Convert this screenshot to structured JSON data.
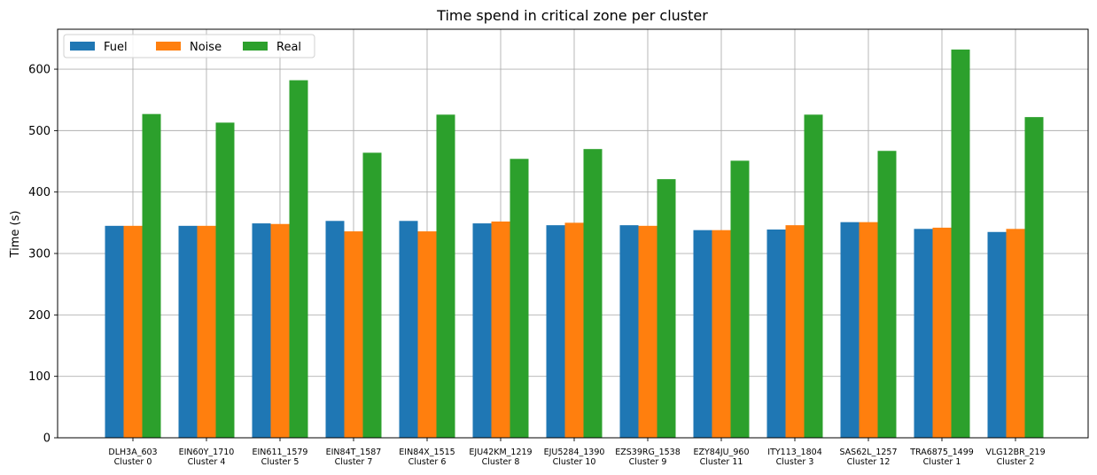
{
  "chart_data": {
    "type": "bar",
    "title": "Time spend in critical zone per cluster",
    "xlabel": "",
    "ylabel": "Time (s)",
    "ylim": [
      0,
      665
    ],
    "yticks": [
      0,
      100,
      200,
      300,
      400,
      500,
      600
    ],
    "grid": true,
    "legend_position": "top-left",
    "categories": [
      [
        "DLH3A_603",
        "Cluster 0"
      ],
      [
        "EIN60Y_1710",
        "Cluster 4"
      ],
      [
        "EIN611_1579",
        "Cluster 5"
      ],
      [
        "EIN84T_1587",
        "Cluster 7"
      ],
      [
        "EIN84X_1515",
        "Cluster 6"
      ],
      [
        "EJU42KM_1219",
        "Cluster 8"
      ],
      [
        "EJU5284_1390",
        "Cluster 10"
      ],
      [
        "EZS39RG_1538",
        "Cluster 9"
      ],
      [
        "EZY84JU_960",
        "Cluster 11"
      ],
      [
        "ITY113_1804",
        "Cluster 3"
      ],
      [
        "SAS62L_1257",
        "Cluster 12"
      ],
      [
        "TRA6875_1499",
        "Cluster 1"
      ],
      [
        "VLG12BR_219",
        "Cluster 2"
      ]
    ],
    "series": [
      {
        "name": "Fuel",
        "color": "#1f77b4",
        "values": [
          345,
          345,
          349,
          353,
          353,
          349,
          346,
          346,
          338,
          339,
          351,
          340,
          335
        ]
      },
      {
        "name": "Noise",
        "color": "#ff7f0e",
        "values": [
          345,
          345,
          348,
          336,
          336,
          352,
          350,
          345,
          338,
          346,
          351,
          342,
          340
        ]
      },
      {
        "name": "Real",
        "color": "#2ca02c",
        "values": [
          527,
          513,
          582,
          464,
          526,
          454,
          470,
          421,
          451,
          526,
          467,
          632,
          522
        ]
      }
    ]
  }
}
